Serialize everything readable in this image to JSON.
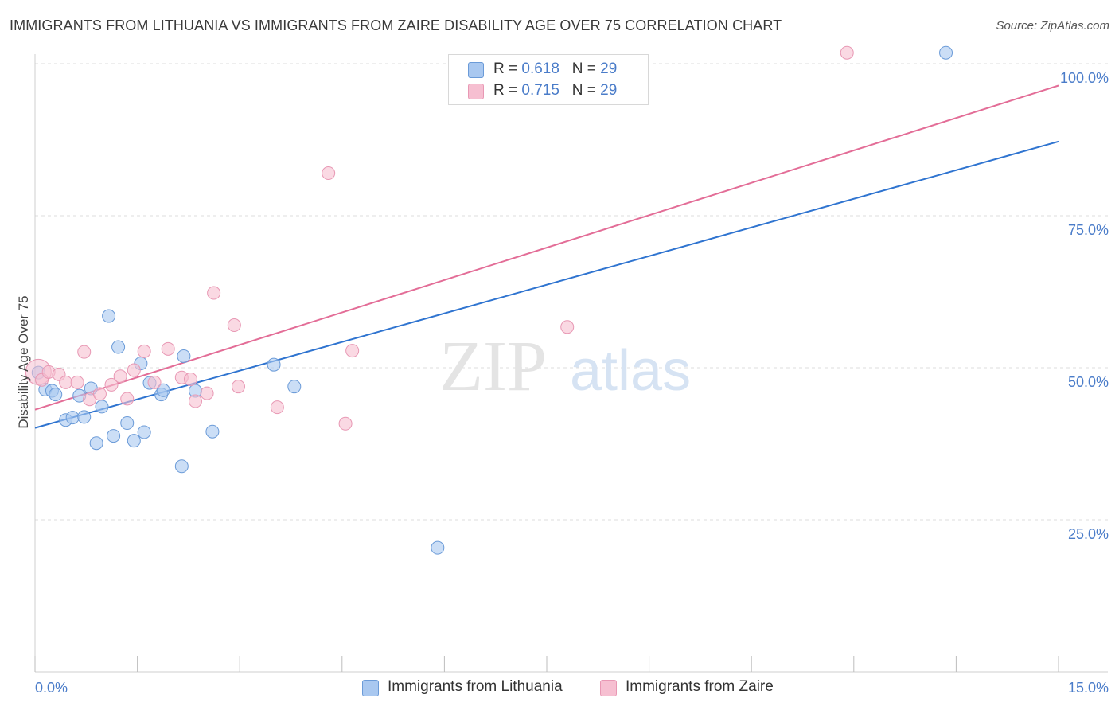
{
  "header": {
    "title": "IMMIGRANTS FROM LITHUANIA VS IMMIGRANTS FROM ZAIRE DISABILITY AGE OVER 75 CORRELATION CHART",
    "source": "Source: ZipAtlas.com"
  },
  "watermark": {
    "zip": "ZIP",
    "atlas": "atlas"
  },
  "legend": {
    "rows": [
      {
        "r_label": "R = ",
        "r_value": "0.618",
        "n_label": "N = ",
        "n_value": "29"
      },
      {
        "r_label": "R = ",
        "r_value": "0.715",
        "n_label": "N = ",
        "n_value": "29"
      }
    ]
  },
  "bottom_legend": {
    "lithuania": "Immigrants from Lithuania",
    "zaire": "Immigrants from Zaire"
  },
  "colors": {
    "lithuania_fill": "#a9c8f0",
    "lithuania_stroke": "#6b9bd8",
    "lithuania_line": "#2f74d0",
    "zaire_fill": "#f6bfd1",
    "zaire_stroke": "#e898b4",
    "zaire_line": "#e36d97",
    "tick_text": "#4a7cc9",
    "grid": "#dddddd"
  },
  "chart_data": {
    "type": "scatter",
    "title": "IMMIGRANTS FROM LITHUANIA VS IMMIGRANTS FROM ZAIRE DISABILITY AGE OVER 75 CORRELATION CHART",
    "xlabel": "",
    "ylabel": "Disability Age Over 75",
    "xlim": [
      0,
      15
    ],
    "ylim": [
      0,
      100
    ],
    "x_tick_labels": [
      "0.0%",
      "15.0%"
    ],
    "y_ticks": [
      25,
      50,
      75,
      100
    ],
    "y_tick_labels": [
      "25.0%",
      "50.0%",
      "75.0%",
      "100.0%"
    ],
    "grid": true,
    "legend_position": "top-center",
    "series": [
      {
        "name": "Immigrants from Lithuania",
        "r": 0.618,
        "n": 29,
        "trend": {
          "x": [
            0,
            15
          ],
          "y": [
            40.1,
            87.2
          ]
        },
        "points": [
          [
            0.05,
            49.2
          ],
          [
            0.15,
            46.4
          ],
          [
            0.25,
            46.2
          ],
          [
            0.3,
            45.6
          ],
          [
            0.45,
            41.4
          ],
          [
            0.55,
            41.8
          ],
          [
            0.65,
            45.4
          ],
          [
            0.72,
            41.9
          ],
          [
            0.82,
            46.6
          ],
          [
            0.9,
            37.6
          ],
          [
            0.98,
            43.6
          ],
          [
            1.08,
            58.5
          ],
          [
            1.15,
            38.8
          ],
          [
            1.22,
            53.4
          ],
          [
            1.35,
            40.9
          ],
          [
            1.45,
            38.0
          ],
          [
            1.55,
            50.7
          ],
          [
            1.6,
            39.4
          ],
          [
            1.68,
            47.5
          ],
          [
            1.85,
            45.6
          ],
          [
            1.88,
            46.3
          ],
          [
            2.15,
            33.8
          ],
          [
            2.18,
            51.9
          ],
          [
            2.35,
            46.2
          ],
          [
            2.6,
            39.5
          ],
          [
            3.5,
            50.5
          ],
          [
            3.8,
            46.9
          ],
          [
            5.9,
            20.4
          ],
          [
            13.35,
            101.8
          ]
        ]
      },
      {
        "name": "Immigrants from Zaire",
        "r": 0.715,
        "n": 29,
        "trend": {
          "x": [
            0,
            15
          ],
          "y": [
            43.1,
            96.4
          ]
        },
        "points": [
          [
            0.05,
            49.3
          ],
          [
            0.1,
            48.0
          ],
          [
            0.2,
            49.3
          ],
          [
            0.35,
            48.9
          ],
          [
            0.45,
            47.6
          ],
          [
            0.62,
            47.6
          ],
          [
            0.72,
            52.6
          ],
          [
            0.8,
            44.8
          ],
          [
            0.95,
            45.7
          ],
          [
            1.12,
            47.2
          ],
          [
            1.25,
            48.6
          ],
          [
            1.35,
            44.9
          ],
          [
            1.45,
            49.6
          ],
          [
            1.6,
            52.7
          ],
          [
            1.75,
            47.6
          ],
          [
            1.95,
            53.1
          ],
          [
            2.15,
            48.4
          ],
          [
            2.28,
            48.1
          ],
          [
            2.35,
            44.5
          ],
          [
            2.52,
            45.8
          ],
          [
            2.62,
            62.3
          ],
          [
            2.92,
            57.0
          ],
          [
            2.98,
            46.9
          ],
          [
            3.55,
            43.5
          ],
          [
            4.3,
            82.0
          ],
          [
            4.55,
            40.8
          ],
          [
            4.65,
            52.8
          ],
          [
            7.8,
            56.7
          ],
          [
            11.9,
            101.8
          ]
        ]
      }
    ]
  }
}
